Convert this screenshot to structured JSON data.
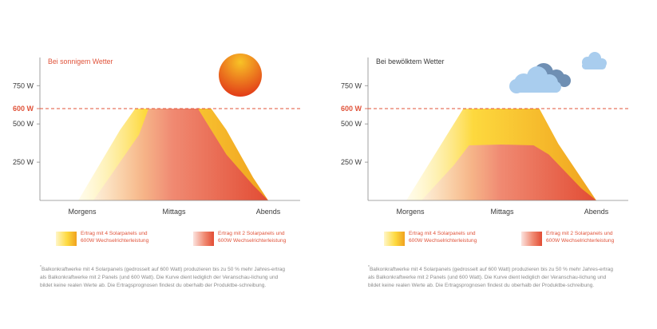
{
  "chart_data": [
    {
      "type": "area",
      "title": "Bei sonnigem Wetter",
      "x_categories": [
        "Morgens",
        "Mittags",
        "Abends"
      ],
      "y_ticks": [
        {
          "value": 250,
          "label": "250 W"
        },
        {
          "value": 500,
          "label": "500 W"
        },
        {
          "value": 600,
          "label": "600 W",
          "highlight": true
        },
        {
          "value": 750,
          "label": "750 W"
        }
      ],
      "ylim": [
        0,
        900
      ],
      "reference_line": {
        "value": 600,
        "label": "600 W",
        "style": "dashed"
      },
      "grid": false,
      "series": [
        {
          "label": "Ertrag mit 4 Solarpanels und 600W Wechselrichterleistung",
          "x": [
            0.0,
            0.22,
            0.3,
            0.5,
            0.7,
            0.78,
            0.92,
            1.0
          ],
          "y": [
            0,
            460,
            600,
            600,
            600,
            460,
            150,
            0
          ]
        },
        {
          "label": "Ertrag mit 2 Solarpanels und 600W Wechselrichterleistung",
          "x": [
            0.08,
            0.32,
            0.37,
            0.5,
            0.63,
            0.78,
            0.92,
            1.0
          ],
          "y": [
            0,
            430,
            600,
            600,
            600,
            300,
            100,
            0
          ]
        }
      ],
      "icon": "sun-icon"
    },
    {
      "type": "area",
      "title": "Bei bewölktem Wetter",
      "x_categories": [
        "Morgens",
        "Mittags",
        "Abends"
      ],
      "y_ticks": [
        {
          "value": 250,
          "label": "250 W"
        },
        {
          "value": 500,
          "label": "500 W"
        },
        {
          "value": 600,
          "label": "600 W",
          "highlight": true
        },
        {
          "value": 750,
          "label": "750 W"
        }
      ],
      "ylim": [
        0,
        900
      ],
      "reference_line": {
        "value": 600,
        "label": "600 W",
        "style": "dashed"
      },
      "grid": false,
      "series": [
        {
          "label": "Ertrag mit 4 Solarpanels und 600W Wechselrichterleistung",
          "x": [
            0.0,
            0.2,
            0.3,
            0.5,
            0.7,
            0.8,
            0.93,
            1.0
          ],
          "y": [
            0,
            400,
            600,
            600,
            600,
            370,
            130,
            0
          ]
        },
        {
          "label": "Ertrag mit 2 Solarpanels und 600W Wechselrichterleistung",
          "x": [
            0.08,
            0.25,
            0.33,
            0.5,
            0.67,
            0.75,
            0.92,
            1.0
          ],
          "y": [
            0,
            230,
            360,
            365,
            360,
            300,
            80,
            0
          ]
        }
      ],
      "icon": "clouds-icon"
    }
  ],
  "colors": {
    "accent": "#e0533a",
    "axis": "#8a8a8a",
    "text": "#3a3a3a",
    "four_panels_gradient": [
      "#fff6c8",
      "#fdd93e",
      "#f0a21e"
    ],
    "two_panels_gradient": [
      "#fbe3df",
      "#f08a72",
      "#e24c34"
    ],
    "sun": [
      "#f8c326",
      "#e23b18"
    ],
    "clouds": [
      "#a9cdee",
      "#6f8fb3"
    ]
  },
  "legend": {
    "four_panels": {
      "line1": "Ertrag mit 4 Solarpanels und",
      "line2": "600W Wechselrichterleistung"
    },
    "two_panels": {
      "line1": "Ertrag mit 2 Solarpanels und",
      "line2": "600W Wechselrichterleistung"
    }
  },
  "footnote": {
    "marker": "*",
    "text": "Balkonkraftwerke mit 4 Solarpanels (gedrosselt auf 600 Watt) produzieren bis zu 50 % mehr Jahres-ertrag als Balkonkraftwerke mit 2 Panels (und 600 Watt). Die Kurve dient lediglich der Veranschau-lichung und bildet keine realen Werte ab. Die Ertragsprognosen findest du oberhalb der Produktbe-schreibung."
  }
}
